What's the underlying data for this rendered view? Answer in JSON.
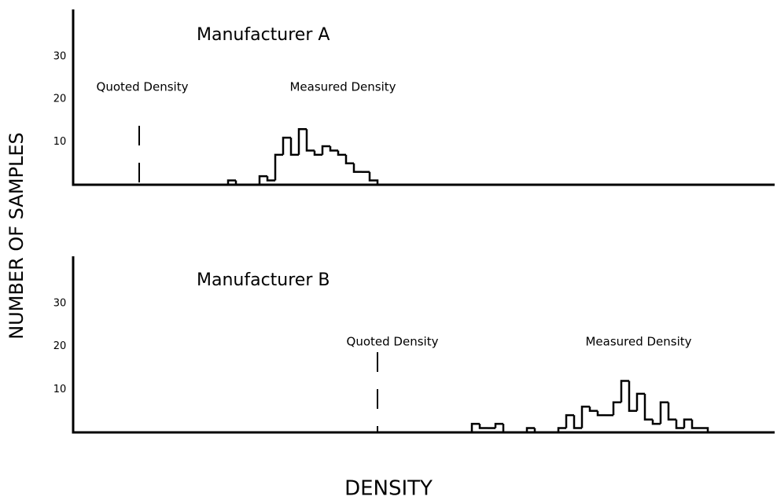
{
  "ylabel": "NUMBER OF SAMPLES",
  "xlabel": "DENSITY",
  "chart_data": [
    {
      "type": "histogram",
      "title": "Manufacturer A",
      "bins": [
        20,
        21,
        22,
        23,
        24,
        25,
        26,
        27,
        28,
        29,
        30,
        31,
        32,
        33,
        34,
        35,
        36,
        37,
        38,
        39
      ],
      "counts": [
        1,
        0,
        0,
        0,
        2,
        1,
        7,
        11,
        7,
        13,
        8,
        7,
        9,
        8,
        7,
        5,
        3,
        3,
        1
      ],
      "color": "#000000",
      "xlim": [
        0.3,
        89.5
      ],
      "ylim": [
        0,
        41
      ],
      "yticks": [
        10,
        20,
        30
      ],
      "annotations": [
        {
          "text": "Quoted Density",
          "x": 8.7
        },
        {
          "text": "Measured Density"
        }
      ]
    },
    {
      "type": "histogram",
      "title": "Manufacturer B",
      "bins": [
        51,
        52,
        53,
        54,
        55,
        56,
        57,
        58,
        59,
        60,
        61,
        62,
        63,
        64,
        65,
        66,
        67,
        68,
        69,
        70,
        71,
        72,
        73,
        74,
        75,
        76,
        77,
        78,
        79,
        80,
        81
      ],
      "counts": [
        2,
        1,
        1,
        2,
        0,
        0,
        0,
        1,
        0,
        0,
        0,
        1,
        4,
        1,
        6,
        5,
        4,
        4,
        7,
        12,
        5,
        9,
        3,
        2,
        7,
        3,
        1,
        3,
        1,
        1
      ],
      "color": "#000000",
      "xlim": [
        0.3,
        89.5
      ],
      "ylim": [
        0,
        41
      ],
      "yticks": [
        10,
        20,
        30
      ],
      "annotations": [
        {
          "text": "Quoted Density",
          "x": 39
        },
        {
          "text": "Measured Density"
        }
      ]
    }
  ]
}
